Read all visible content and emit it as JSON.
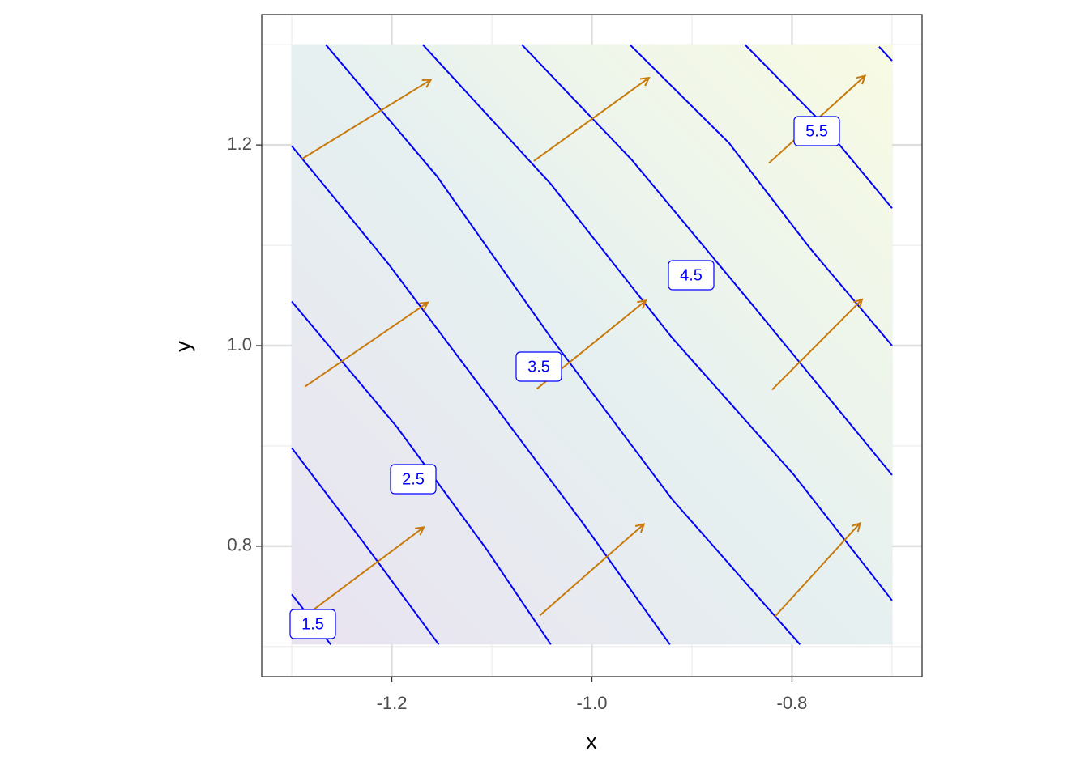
{
  "chart_data": {
    "type": "contour",
    "xlabel": "x",
    "ylabel": "y",
    "xlim": [
      -1.33,
      -0.67
    ],
    "ylim": [
      0.67,
      1.33
    ],
    "xticks": [
      -1.2,
      {
        "value": -1.0,
        "label": "-1.0"
      },
      -0.8
    ],
    "yticks": [
      0.8,
      {
        "value": 1.0,
        "label": "1.0"
      },
      1.2
    ],
    "grid": true,
    "contour_color": "#0000ff",
    "contours": [
      {
        "level": 1.5,
        "x": [
          -1.3,
          -1.281,
          -1.261
        ],
        "y": [
          0.752,
          0.728,
          0.702
        ]
      },
      {
        "level": 2.0,
        "x": [
          -1.3,
          -1.227,
          -1.153
        ],
        "y": [
          0.898,
          0.802,
          0.702
        ]
      },
      {
        "level": 2.5,
        "x": [
          -1.3,
          -1.195,
          -1.106,
          -1.041
        ],
        "y": [
          1.044,
          0.919,
          0.798,
          0.702
        ]
      },
      {
        "level": 3.0,
        "x": [
          -1.3,
          -1.203,
          -1.106,
          -1.009,
          -0.922
        ],
        "y": [
          1.199,
          1.081,
          0.952,
          0.823,
          0.702
        ]
      },
      {
        "level": 3.5,
        "x": [
          -1.266,
          -1.155,
          -1.041,
          -0.92,
          -0.792
        ],
        "y": [
          1.3,
          1.169,
          1.008,
          0.847,
          0.702
        ]
      },
      {
        "level": 4.0,
        "x": [
          -1.169,
          -1.041,
          -0.92,
          -0.798,
          -0.7
        ],
        "y": [
          1.3,
          1.161,
          1.008,
          0.871,
          0.746
        ]
      },
      {
        "level": 4.5,
        "x": [
          -1.07,
          -0.96,
          -0.839,
          -0.7
        ],
        "y": [
          1.3,
          1.185,
          1.04,
          0.871
        ]
      },
      {
        "level": 5.0,
        "x": [
          -0.962,
          -0.863,
          -0.782,
          -0.7
        ],
        "y": [
          1.3,
          1.202,
          1.097,
          1.0
        ]
      },
      {
        "level": 5.5,
        "x": [
          -0.847,
          -0.774,
          -0.7
        ],
        "y": [
          1.3,
          1.226,
          1.137
        ]
      },
      {
        "level": 6.0,
        "x": [
          -0.713,
          -0.7
        ],
        "y": [
          1.298,
          1.284
        ]
      }
    ],
    "arrows": {
      "color": "#c77a0b",
      "x0": [
        -1.29,
        -1.058,
        -0.823,
        -1.287,
        -1.055,
        -0.82,
        -1.282,
        -1.052,
        -0.817
      ],
      "y0": [
        1.186,
        1.184,
        1.182,
        0.959,
        0.957,
        0.956,
        0.734,
        0.731,
        0.73
      ],
      "x1": [
        -1.161,
        -0.943,
        -0.727,
        -1.164,
        -0.946,
        -0.73,
        -1.168,
        -0.948,
        -0.732
      ],
      "y1": [
        1.265,
        1.267,
        1.269,
        1.043,
        1.045,
        1.046,
        0.819,
        0.822,
        0.823
      ]
    }
  }
}
